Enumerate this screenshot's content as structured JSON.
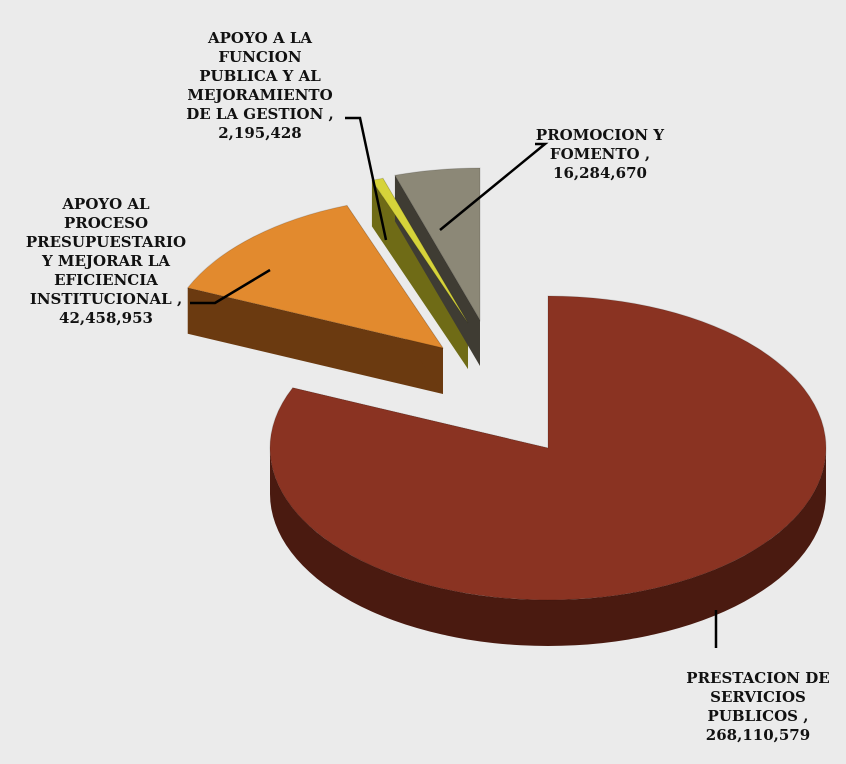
{
  "chart_data": {
    "type": "pie",
    "variant": "3d-exploded",
    "title": "",
    "slices": [
      {
        "label": "PRESTACION DE\nSERVICIOS\nPUBLICOS ,",
        "value_text": "268,110,579",
        "value": 268110579,
        "color": "#8a3322",
        "side_color": "#4a1a10"
      },
      {
        "label": "APOYO AL\nPROCESO\nPRESUPUESTARIO\nY MEJORAR LA\nEFICIENCIA\nINSTITUCIONAL ,",
        "value_text": "42,458,953",
        "value": 42458953,
        "color": "#e28a2e",
        "side_color": "#6b3a10"
      },
      {
        "label": "APOYO A LA\nFUNCION\nPUBLICA Y AL\nMEJORAMIENTO\nDE LA GESTION ,",
        "value_text": "2,195,428",
        "value": 2195428,
        "color": "#d6d33a",
        "side_color": "#6f6b16"
      },
      {
        "label": "PROMOCION Y\nFOMENTO ,",
        "value_text": "16,284,670",
        "value": 16284670,
        "color": "#8c8877",
        "side_color": "#3f3c33"
      }
    ]
  }
}
